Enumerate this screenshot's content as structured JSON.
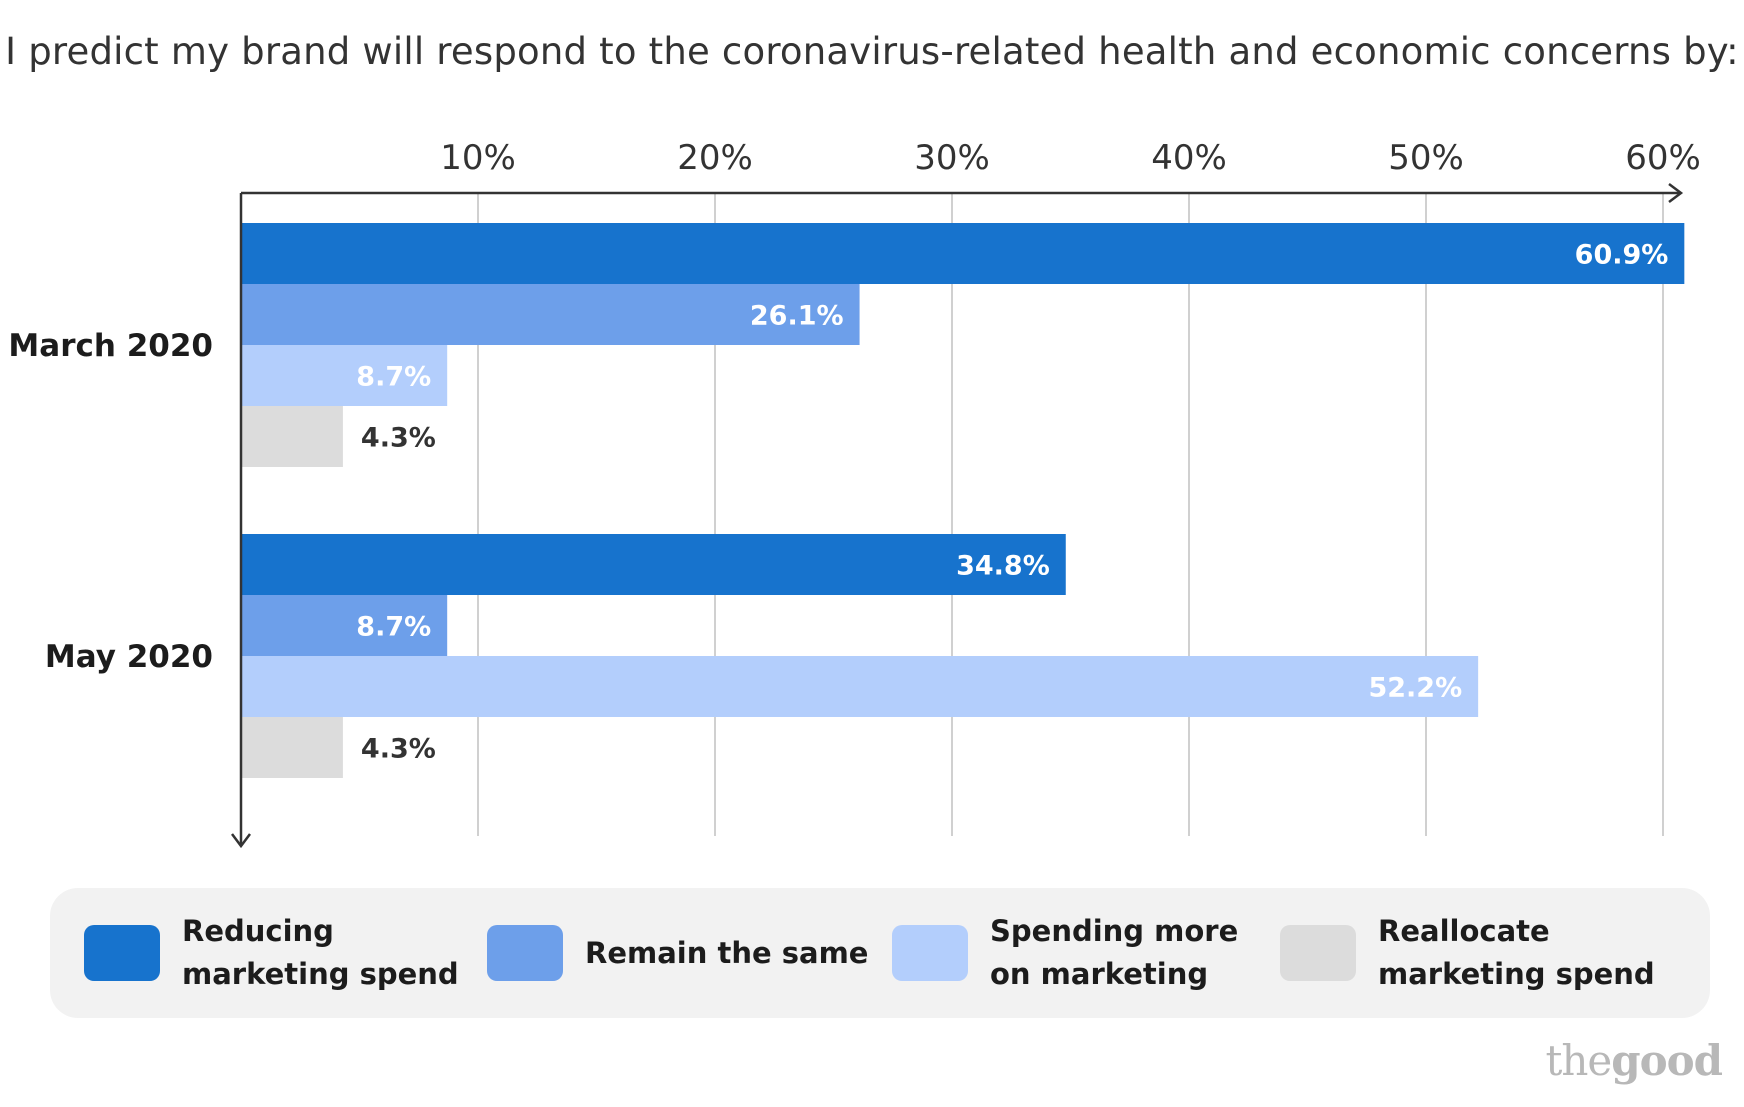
{
  "chart_data": {
    "type": "bar",
    "orientation": "horizontal",
    "title": "I predict my brand will respond to the coronavirus-related health and economic concerns by:",
    "categories": [
      "March 2020",
      "May 2020"
    ],
    "series": [
      {
        "name": "Reducing marketing spend",
        "values": [
          60.9,
          34.8
        ],
        "color": "#1773cd",
        "label_color": "#ffffff"
      },
      {
        "name": "Remain the same",
        "values": [
          26.1,
          8.7
        ],
        "color": "#6d9fea",
        "label_color": "#ffffff"
      },
      {
        "name": "Spending more on marketing",
        "values": [
          8.7,
          52.2
        ],
        "color": "#b3cefc",
        "label_color": "#ffffff"
      },
      {
        "name": "Reallocate marketing spend",
        "values": [
          4.3,
          4.3
        ],
        "color": "#dcdcdc",
        "label_color": "#333333"
      }
    ],
    "value_labels": [
      [
        "60.9%",
        "34.8%"
      ],
      [
        "26.1%",
        "8.7%"
      ],
      [
        "8.7%",
        "52.2%"
      ],
      [
        "4.3%",
        "4.3%"
      ]
    ],
    "xticks": [
      10,
      20,
      30,
      40,
      50,
      60
    ],
    "xtick_labels": [
      "10%",
      "20%",
      "30%",
      "40%",
      "50%",
      "60%"
    ],
    "xlim": [
      0,
      60
    ],
    "grid": true,
    "legend_position": "bottom"
  },
  "legend": {
    "items": [
      {
        "label": "Reducing\nmarketing spend",
        "color": "#1773cd"
      },
      {
        "label": "Remain the same",
        "color": "#6d9fea"
      },
      {
        "label": "Spending more\non marketing",
        "color": "#b3cefc"
      },
      {
        "label": "Reallocate\nmarketing spend",
        "color": "#dcdcdc"
      }
    ]
  },
  "brand": {
    "part1": "the",
    "part2": "good"
  }
}
